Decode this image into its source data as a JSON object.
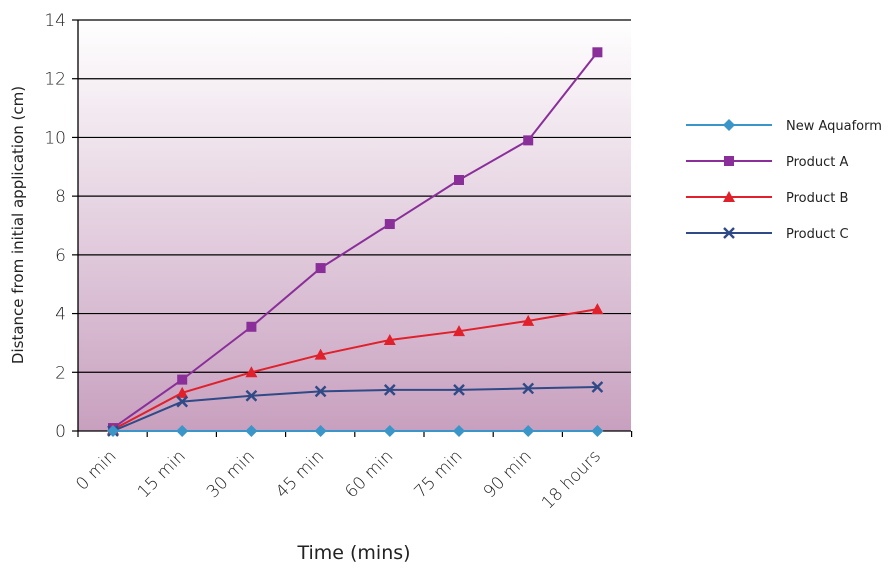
{
  "chart_data": {
    "type": "line",
    "title": "",
    "xlabel": "Time (mins)",
    "ylabel": "Distance from initial application (cm)",
    "categories": [
      "0 min",
      "15 min",
      "30 min",
      "45 min",
      "60 min",
      "75 min",
      "90 min",
      "18 hours"
    ],
    "ylim": [
      0,
      14
    ],
    "yticks": [
      0,
      2,
      4,
      6,
      8,
      10,
      12,
      14
    ],
    "grid": true,
    "legend_position": "right",
    "series": [
      {
        "name": "New Aquaform",
        "color": "#3a96c8",
        "marker": "diamond",
        "values": [
          0,
          0,
          0,
          0,
          0,
          0,
          0,
          0
        ]
      },
      {
        "name": "Product A",
        "color": "#8a2f9a",
        "marker": "square",
        "values": [
          0.1,
          1.75,
          3.55,
          5.55,
          7.05,
          8.55,
          9.9,
          12.9
        ]
      },
      {
        "name": "Product B",
        "color": "#e0202a",
        "marker": "triangle",
        "values": [
          0.05,
          1.3,
          2.0,
          2.6,
          3.1,
          3.4,
          3.75,
          4.15
        ]
      },
      {
        "name": "Product C",
        "color": "#2f4a86",
        "marker": "x",
        "values": [
          0,
          1.0,
          1.2,
          1.35,
          1.4,
          1.4,
          1.45,
          1.5
        ]
      }
    ]
  }
}
